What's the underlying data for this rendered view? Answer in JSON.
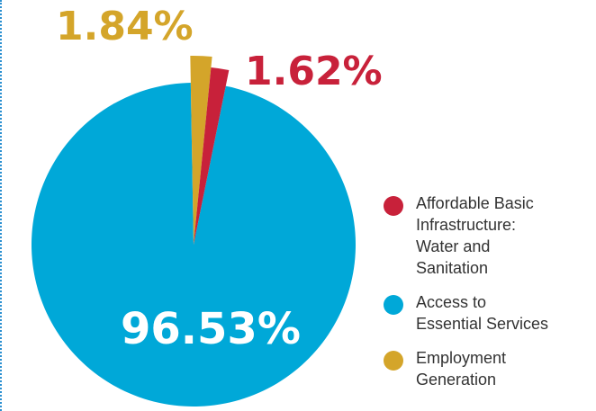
{
  "chart_data": {
    "type": "pie",
    "slices": [
      {
        "label": "Employment Generation",
        "value": 1.84,
        "value_label": "1.84%",
        "color": "#d4a52a"
      },
      {
        "label": "Affordable Basic Infrastructure: Water and Sanitation",
        "value": 1.62,
        "value_label": "1.62%",
        "color": "#c8213a"
      },
      {
        "label": "Access to Essential Services",
        "value": 96.53,
        "value_label": "96.53%",
        "color": "#00a8d8"
      }
    ],
    "legend": {
      "placement": "right",
      "items": [
        {
          "text": "Affordable Basic\nInfrastructure:\nWater and\nSanitation",
          "color": "#c8213a"
        },
        {
          "text": "Access to\nEssential Services",
          "color": "#00a8d8"
        },
        {
          "text": "Employment\nGeneration",
          "color": "#d4a52a"
        }
      ]
    }
  }
}
